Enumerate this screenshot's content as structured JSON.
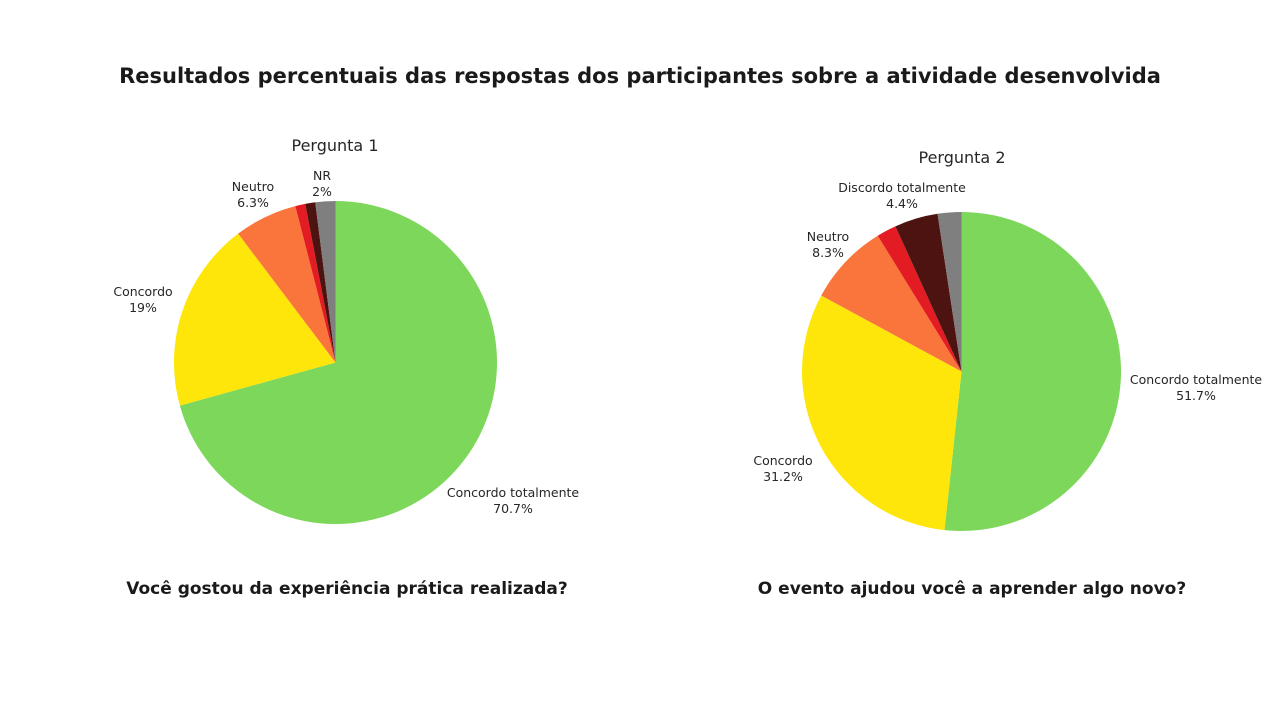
{
  "figure": {
    "title": "Resultados percentuais das respostas dos participantes sobre a atividade desenvolvida"
  },
  "chart_data": [
    {
      "type": "pie",
      "title": "Pergunta 1",
      "question": "Você gostou da experiência prática realizada?",
      "direction": "clockwise",
      "start_angle": "12-oclock",
      "legend_position": "none",
      "slices": [
        {
          "label": "Concordo totalmente",
          "pct": "70.7%",
          "value": 70.7,
          "color": "#7CD75A"
        },
        {
          "label": "Concordo",
          "pct": "19%",
          "value": 19,
          "color": "#FFE60A"
        },
        {
          "label": "Neutro",
          "pct": "6.3%",
          "value": 6.3,
          "color": "#F9753B"
        },
        {
          "label": "",
          "pct": "",
          "value": 1,
          "color": "#E31B23"
        },
        {
          "label": "",
          "pct": "",
          "value": 1,
          "color": "#4C1310"
        },
        {
          "label": "NR",
          "pct": "2%",
          "value": 2,
          "color": "#7F7F7F"
        }
      ]
    },
    {
      "type": "pie",
      "title": "Pergunta 2",
      "question": "O evento ajudou você a aprender algo novo?",
      "direction": "clockwise",
      "start_angle": "12-oclock",
      "legend_position": "none",
      "slices": [
        {
          "label": "Concordo totalmente",
          "pct": "51.7%",
          "value": 51.7,
          "color": "#7CD75A"
        },
        {
          "label": "Concordo",
          "pct": "31.2%",
          "value": 31.2,
          "color": "#FFE60A"
        },
        {
          "label": "Neutro",
          "pct": "8.3%",
          "value": 8.3,
          "color": "#F9753B"
        },
        {
          "label": "",
          "pct": "",
          "value": 2,
          "color": "#E31B23"
        },
        {
          "label": "Discordo totalmente",
          "pct": "4.4%",
          "value": 4.4,
          "color": "#4C1310"
        },
        {
          "label": "",
          "pct": "",
          "value": 2.4,
          "color": "#7F7F7F"
        }
      ]
    }
  ]
}
